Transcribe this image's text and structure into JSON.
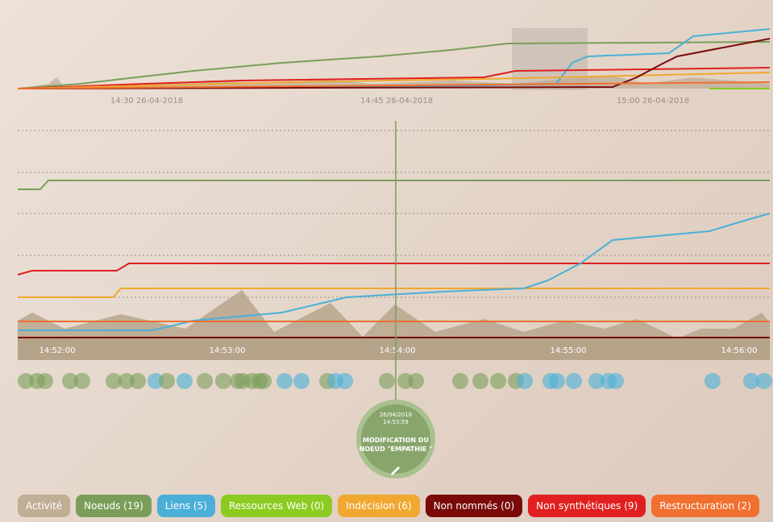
{
  "overview": {
    "axis_labels": [
      "14:30 26-04-2018",
      "14:45 26-04-2018",
      "15:00 26-04-2018"
    ]
  },
  "main": {
    "axis_labels": [
      "14:52:00",
      "14:53:00",
      "14:54:00",
      "14:55:00",
      "14:56:00"
    ]
  },
  "tooltip": {
    "date": "26/04/2018",
    "time": "14:53:59",
    "title_line1": "MODIFICATION DU",
    "title_line2": "NOEUD \"EMPATHIE \""
  },
  "legend": [
    "Activité",
    "Noeuds (19)",
    "Liens (5)",
    "Ressources Web (0)",
    "Indécision (6)",
    "Non nommés (0)",
    "Non synthétiques (9)",
    "Restructuration (2)"
  ]
}
